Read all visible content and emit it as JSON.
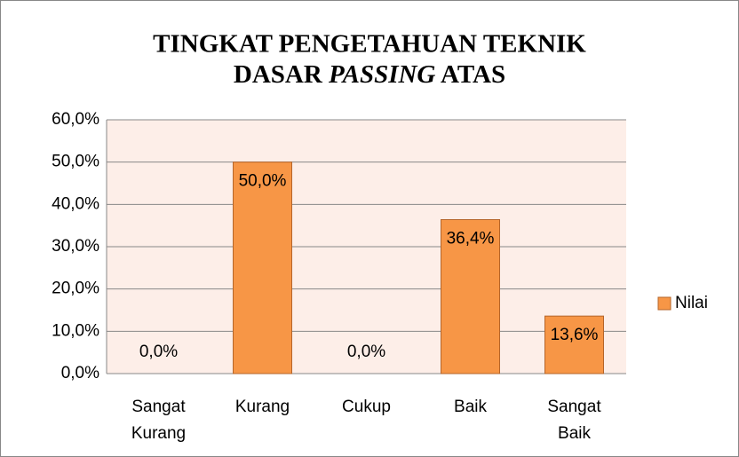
{
  "chart_data": {
    "type": "bar",
    "title": [
      "TINGKAT PENGETAHUAN TEKNIK",
      "DASAR",
      "PASSING",
      "ATAS"
    ],
    "categories": [
      "Sangat Kurang",
      "Kurang",
      "Cukup",
      "Baik",
      "Sangat Baik"
    ],
    "series": [
      {
        "name": "Nilai",
        "color": "#f79646",
        "values": [
          0,
          50,
          0,
          36.4,
          13.6
        ],
        "value_labels": [
          "0,0%",
          "50,0%",
          "0,0%",
          "36,4%",
          "13,6%"
        ]
      }
    ],
    "ylim": [
      0,
      60
    ],
    "yticks": [
      {
        "value": 0,
        "label": "0,0%"
      },
      {
        "value": 10,
        "label": "10,0%"
      },
      {
        "value": 20,
        "label": "20,0%"
      },
      {
        "value": 30,
        "label": "30,0%"
      },
      {
        "value": 40,
        "label": "40,0%"
      },
      {
        "value": 50,
        "label": "50,0%"
      },
      {
        "value": 60,
        "label": "60,0%"
      }
    ],
    "grid": true,
    "legend": "right"
  }
}
